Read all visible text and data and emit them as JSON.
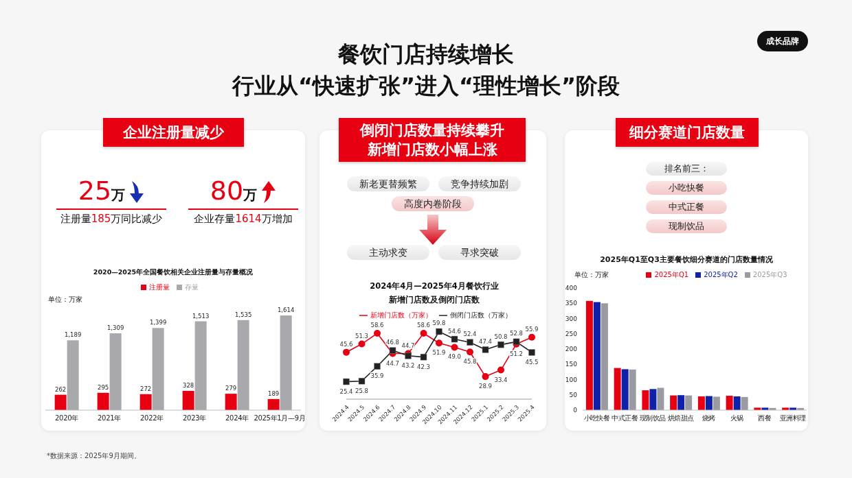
{
  "chart_data": [
    {
      "type": "other",
      "title": "餐饮门店持续增长",
      "subtitle": "行业从“快速扩张”进入“理性增长”阶段",
      "annotations": [
        "成长品牌",
        "*数据来源：2025年9月期间。"
      ]
    },
    {
      "type": "other",
      "title": "企业注册量减少",
      "annotations": [
        "25万",
        "注册量185万同比减少",
        "80万",
        "企业存量1614万增加"
      ]
    },
    {
      "type": "bar",
      "title": "2020—2025年全国餐饮相关企业注册量与存量概况",
      "categories": [
        "2020年",
        "2021年",
        "2022年",
        "2023年",
        "2024年",
        "2025年1月—9月"
      ],
      "legend": "top",
      "tick_labels": "x",
      "annotations": [
        "单位：万家"
      ],
      "series": [
        {
          "name": "注册量",
          "color": "#e60012",
          "values": [
            262,
            295,
            272,
            328,
            279,
            189
          ],
          "value_labels": [
            "262",
            "295",
            "272",
            "328",
            "279",
            "189"
          ]
        },
        {
          "name": "存量",
          "color": "#a8a8ad",
          "values": [
            1189,
            1309,
            1399,
            1513,
            1535,
            1614
          ],
          "value_labels": [
            "1,189",
            "1,309",
            "1,399",
            "1,513",
            "1,535",
            "1,614"
          ]
        }
      ]
    },
    {
      "type": "other",
      "title": "倒闭门店数量持续攀升",
      "subtitle": "新增门店数小幅上涨",
      "annotations": [
        "新老更替频繁",
        "竞争持续加剧",
        "高度内卷阶段",
        "主动求变",
        "寻求突破"
      ]
    },
    {
      "type": "line",
      "title": "2024年4月—2025年4月餐饮行业",
      "subtitle": "新增门店数及倒闭门店数",
      "categories": [
        "2024.4",
        "2024.5",
        "2024.6",
        "2024.7",
        "2024.8",
        "2024.9",
        "2024.10",
        "2024.11",
        "2024.12",
        "2025.1",
        "2025.2",
        "2025.3",
        "2025.4"
      ],
      "legend": "top",
      "tick_labels": "x",
      "line_style": "solid",
      "series": [
        {
          "name": "新增门店数（万家）",
          "color": "#e60012",
          "marker": "circle",
          "values": [
            45.6,
            51.3,
            58.6,
            44.7,
            44.7,
            58.6,
            51.9,
            49.0,
            45.8,
            28.9,
            33.4,
            51.2,
            55.9
          ],
          "value_labels": [
            "45.6",
            "51.3",
            "58.6",
            "44.7",
            "44.7",
            "58.6",
            "51.9",
            "49.0",
            "45.8",
            "28.9",
            "33.4",
            "51.2",
            "55.9"
          ]
        },
        {
          "name": "倒闭门店数（万家）",
          "color": "#222222",
          "marker": "square",
          "values": [
            25.4,
            25.8,
            35.9,
            46.8,
            43.2,
            42.3,
            59.8,
            54.6,
            52.4,
            47.4,
            50.8,
            52.8,
            45.5
          ],
          "value_labels": [
            "25.4",
            "25.8",
            "35.9",
            "46.8",
            "43.2",
            "42.3",
            "59.8",
            "54.6",
            "52.4",
            "47.4",
            "50.8",
            "52.8",
            "45.5"
          ]
        }
      ]
    },
    {
      "type": "other",
      "title": "细分赛道门店数量",
      "annotations": [
        "排名前三：",
        "小吃快餐",
        "中式正餐",
        "现制饮品"
      ]
    },
    {
      "type": "bar",
      "title": "2025年Q1至Q3主要餐饮细分赛道的门店数量情况",
      "categories": [
        "小吃快餐",
        "中式正餐",
        "现制饮品",
        "烘焙甜点",
        "烧烤",
        "火锅",
        "西餐",
        "亚洲料理"
      ],
      "ylim": [
        0,
        400
      ],
      "yticks": [
        0,
        50,
        100,
        150,
        200,
        250,
        300,
        350,
        400
      ],
      "legend": "top",
      "annotations": [
        "单位：万家"
      ],
      "series": [
        {
          "name": "2025年Q1",
          "color": "#e60012",
          "values": [
            358,
            138,
            65,
            48,
            45,
            47,
            8,
            8
          ]
        },
        {
          "name": "2025年Q2",
          "color": "#1020a8",
          "values": [
            354,
            134,
            69,
            49,
            46,
            45,
            8,
            8
          ]
        },
        {
          "name": "2025年Q3",
          "color": "#9a9aa2",
          "values": [
            350,
            133,
            73,
            48,
            44,
            43,
            7,
            7
          ]
        }
      ]
    }
  ]
}
